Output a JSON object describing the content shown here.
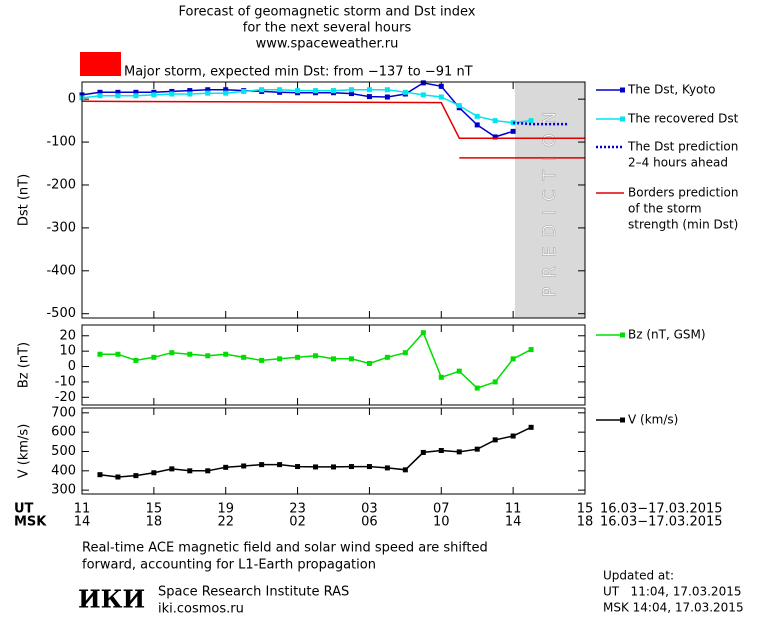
{
  "header": {
    "title": [
      "Forecast of geomagnetic storm and Dst index",
      "for the next several hours",
      "www.spaceweather.ru"
    ],
    "storm_text": "Major storm, expected min Dst: from −137 to −91 nT",
    "storm_color": "#ff0000"
  },
  "x_axis": {
    "xlim": [
      0,
      28
    ],
    "xticks": [
      {
        "value": 0,
        "label": "11"
      },
      {
        "value": 4,
        "label": "15"
      },
      {
        "value": 8,
        "label": "19"
      },
      {
        "value": 12,
        "label": "23"
      },
      {
        "value": 16,
        "label": "03"
      },
      {
        "value": 20,
        "label": "07"
      },
      {
        "value": 24,
        "label": "11"
      },
      {
        "value": 28,
        "label": "15"
      }
    ],
    "msk_ticks": [
      {
        "value": 0,
        "label": "14"
      },
      {
        "value": 4,
        "label": "18"
      },
      {
        "value": 8,
        "label": "22"
      },
      {
        "value": 12,
        "label": "02"
      },
      {
        "value": 16,
        "label": "06"
      },
      {
        "value": 20,
        "label": "10"
      },
      {
        "value": 24,
        "label": "14"
      },
      {
        "value": 28,
        "label": "18"
      }
    ],
    "ut_label": "UT",
    "msk_label": "MSK",
    "range": "16.03−17.03.2015"
  },
  "chart_data": [
    {
      "type": "line",
      "ylabel": "Dst (nT)",
      "ylim": [
        -510,
        40
      ],
      "yticks": [
        0,
        -100,
        -200,
        -300,
        -400,
        -500
      ],
      "prediction_band": {
        "label": "PREDICTION",
        "from": 24.1,
        "to": 28
      },
      "series": [
        {
          "name": [
            "The Dst, Kyoto"
          ],
          "color": "#0000cc",
          "marker": "square",
          "x": [
            0,
            1,
            2,
            3,
            4,
            5,
            6,
            7,
            8,
            9,
            10,
            11,
            12,
            13,
            14,
            15,
            16,
            17,
            18,
            19,
            20,
            21,
            22,
            23,
            24
          ],
          "values": [
            10,
            16,
            16,
            16,
            16,
            18,
            20,
            22,
            22,
            20,
            18,
            16,
            15,
            15,
            15,
            13,
            6,
            5,
            12,
            38,
            30,
            -20,
            -60,
            -88,
            -75
          ]
        },
        {
          "name": [
            "The recovered Dst"
          ],
          "color": "#00e5ee",
          "marker": "square",
          "x": [
            0,
            1,
            2,
            3,
            4,
            5,
            6,
            7,
            8,
            9,
            10,
            11,
            12,
            13,
            14,
            15,
            16,
            17,
            18,
            19,
            20,
            21,
            22,
            23,
            24,
            25
          ],
          "values": [
            3,
            8,
            8,
            8,
            10,
            12,
            12,
            14,
            14,
            18,
            22,
            22,
            20,
            20,
            20,
            22,
            22,
            22,
            16,
            10,
            5,
            -15,
            -40,
            -50,
            -55,
            -50
          ]
        },
        {
          "name": [
            "The Dst prediction",
            "2–4 hours ahead"
          ],
          "color": "#0000dd",
          "dash": true,
          "x": [
            24,
            25,
            26,
            27
          ],
          "values": [
            -55,
            -58,
            -58,
            -58
          ]
        },
        {
          "name": [
            "Borders prediction",
            "of the storm",
            "strength (min Dst)"
          ],
          "color": "#e00000",
          "x": [
            0,
            20,
            21,
            28,
            null,
            21,
            28
          ],
          "values": [
            -5,
            -8,
            -91,
            -91,
            null,
            -137,
            -137
          ]
        }
      ]
    },
    {
      "type": "line",
      "ylabel": "Bz (nT)",
      "ylim": [
        -25,
        27
      ],
      "yticks": [
        20,
        10,
        0,
        -10,
        -20
      ],
      "series": [
        {
          "name": [
            "Bz (nT, GSM)"
          ],
          "color": "#00dd00",
          "marker": "square",
          "x": [
            1,
            2,
            3,
            4,
            5,
            6,
            7,
            8,
            9,
            10,
            11,
            12,
            13,
            14,
            15,
            16,
            17,
            18,
            19,
            20,
            21,
            22,
            23,
            24,
            25
          ],
          "values": [
            8,
            8,
            4,
            6,
            9,
            8,
            7,
            8,
            6,
            4,
            5,
            6,
            7,
            5,
            5,
            2,
            6,
            9,
            22,
            -7,
            -3,
            -14,
            -10,
            5,
            11
          ]
        }
      ]
    },
    {
      "type": "line",
      "ylabel": "V (km/s)",
      "ylim": [
        280,
        725
      ],
      "yticks": [
        300,
        400,
        500,
        600,
        700
      ],
      "series": [
        {
          "name": [
            "V (km/s)"
          ],
          "color": "#000000",
          "marker": "square",
          "x": [
            1,
            2,
            3,
            4,
            5,
            6,
            7,
            8,
            9,
            10,
            11,
            12,
            13,
            14,
            15,
            16,
            17,
            18,
            19,
            20,
            21,
            22,
            23,
            24,
            25
          ],
          "values": [
            380,
            368,
            375,
            390,
            410,
            400,
            400,
            418,
            425,
            432,
            432,
            422,
            420,
            420,
            422,
            422,
            415,
            405,
            495,
            505,
            498,
            512,
            560,
            580,
            625
          ]
        }
      ]
    }
  ],
  "footer": {
    "note": [
      "Real-time ACE magnetic field and solar wind speed are shifted",
      "forward, accounting for L1-Earth propagation"
    ],
    "logo": "ИКИ",
    "institute": "Space Research Institute RAS",
    "site": "iki.cosmos.ru",
    "updated": [
      "Updated at:",
      "UT   11:04, 17.03.2015",
      "MSK 14:04, 17.03.2015"
    ]
  }
}
